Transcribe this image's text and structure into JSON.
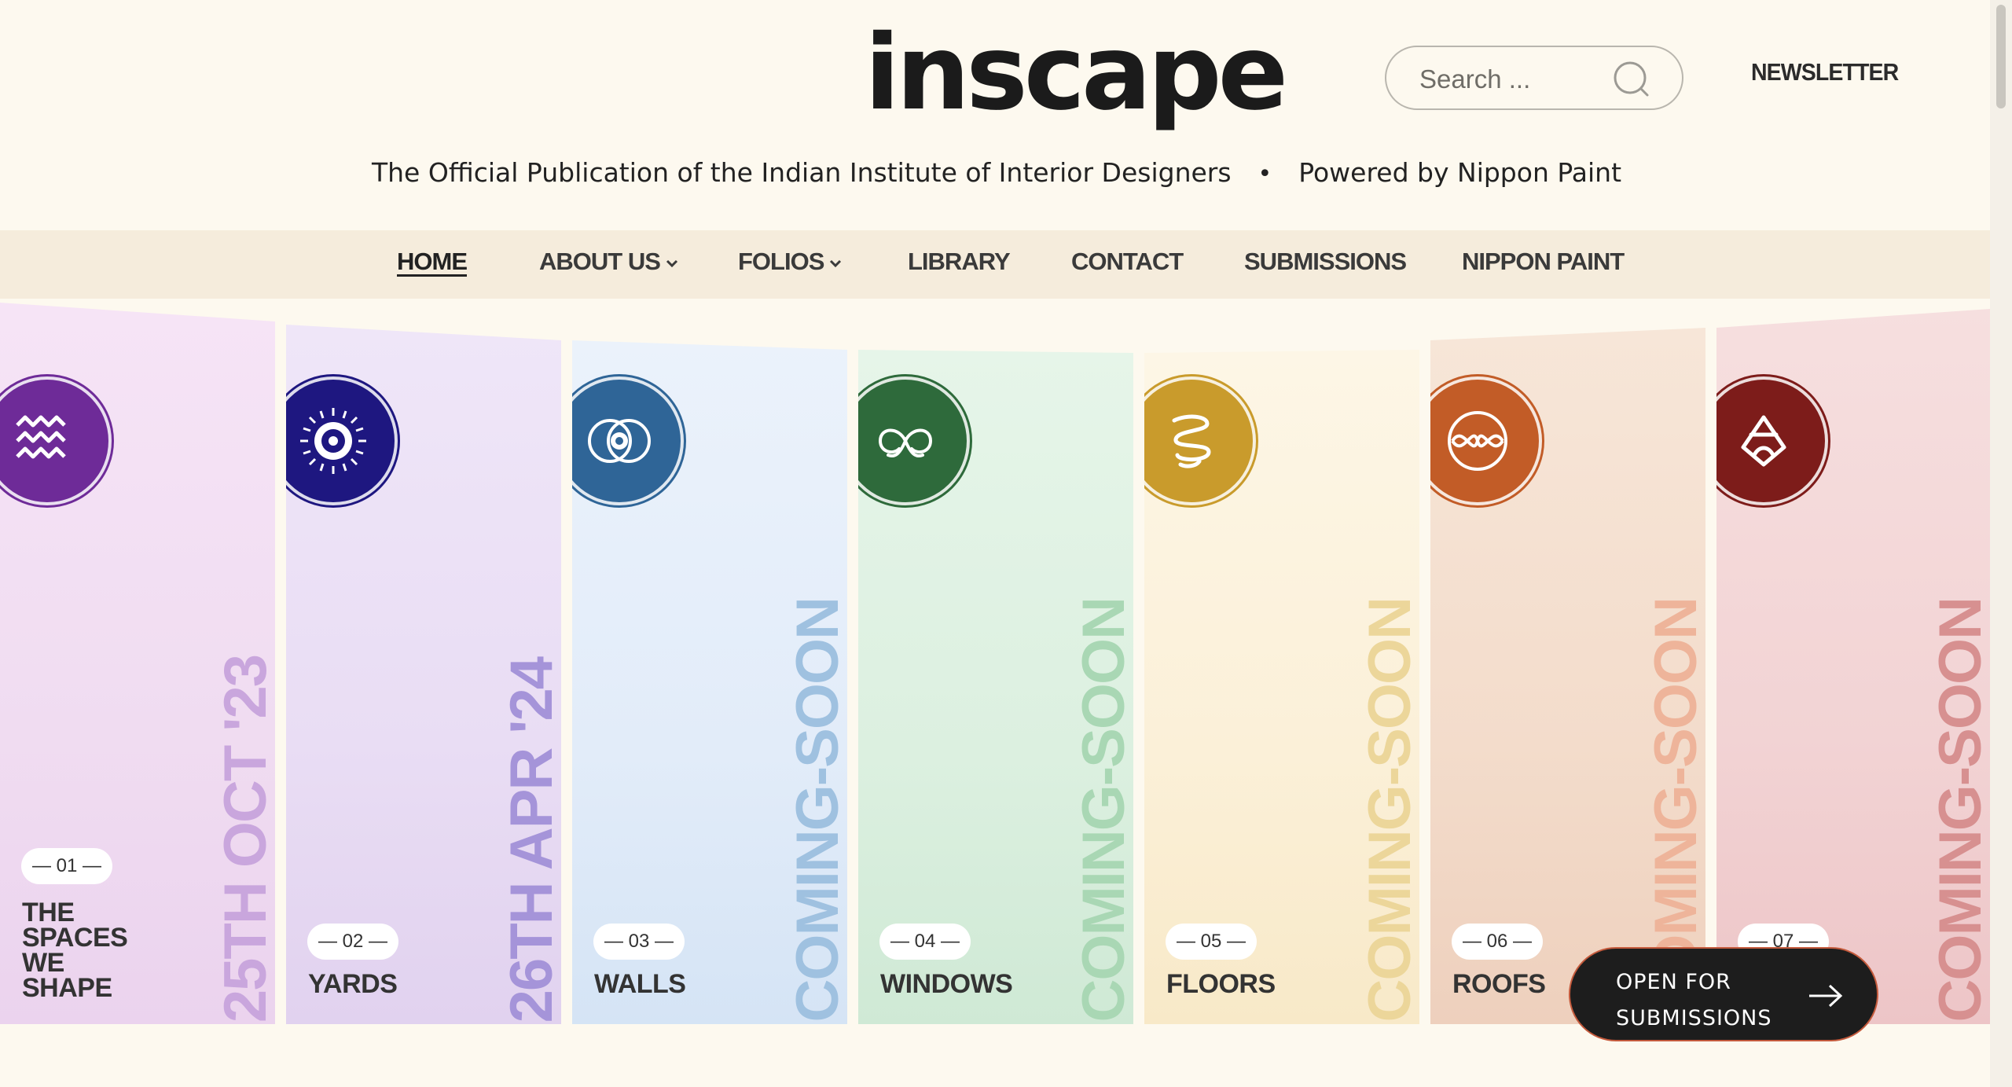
{
  "header": {
    "logo": "inscape",
    "search_placeholder": "Search ...",
    "newsletter": "NEWSLETTER",
    "tagline_left": "The Official Publication of the Indian Institute of Interior Designers",
    "tagline_sep": "•",
    "tagline_right": "Powered by Nippon Paint"
  },
  "nav": {
    "items": [
      {
        "label": "HOME"
      },
      {
        "label": "ABOUT US"
      },
      {
        "label": "FOLIOS"
      },
      {
        "label": "LIBRARY"
      },
      {
        "label": "CONTACT"
      },
      {
        "label": "SUBMISSIONS"
      },
      {
        "label": "NIPPON PAINT"
      }
    ]
  },
  "folios": [
    {
      "number": "— 01 —",
      "title": "THE\nSPACES\nWE\nSHAPE",
      "status": "25TH OCT '23",
      "icon": "waves-icon",
      "color": "#6e2b98",
      "vtext_color": "#c9a6dd"
    },
    {
      "number": "— 02 —",
      "title": "YARDS",
      "status": "26TH APR '24",
      "icon": "sun-eye-icon",
      "color": "#1e1780",
      "vtext_color": "#a594d9"
    },
    {
      "number": "— 03 —",
      "title": "WALLS",
      "status": "COMING-SOON",
      "icon": "eye-rings-icon",
      "color": "#2f6597",
      "vtext_color": "#9fc1e0"
    },
    {
      "number": "— 04 —",
      "title": "WINDOWS",
      "status": "COMING-SOON",
      "icon": "infinity-knot-icon",
      "color": "#2e6a3b",
      "vtext_color": "#a9d7b4"
    },
    {
      "number": "— 05 —",
      "title": "FLOORS",
      "status": "COMING-SOON",
      "icon": "coil-icon",
      "color": "#c99b2c",
      "vtext_color": "#ecd69a"
    },
    {
      "number": "— 06 —",
      "title": "ROOFS",
      "status": "COMING-SOON",
      "icon": "orb-knot-icon",
      "color": "#c25c27",
      "vtext_color": "#eeb49a"
    },
    {
      "number": "— 07 —",
      "title": "",
      "status": "COMING-SOON",
      "icon": "triquetra-icon",
      "color": "#7d1c1a",
      "vtext_color": "#d79090"
    }
  ],
  "cta": {
    "label": "OPEN FOR\nSUBMISSIONS"
  },
  "colors": {
    "background": "#fdf9ef",
    "nav_bg": "#f5ecdc",
    "cta_bg": "#1d1d1d"
  }
}
